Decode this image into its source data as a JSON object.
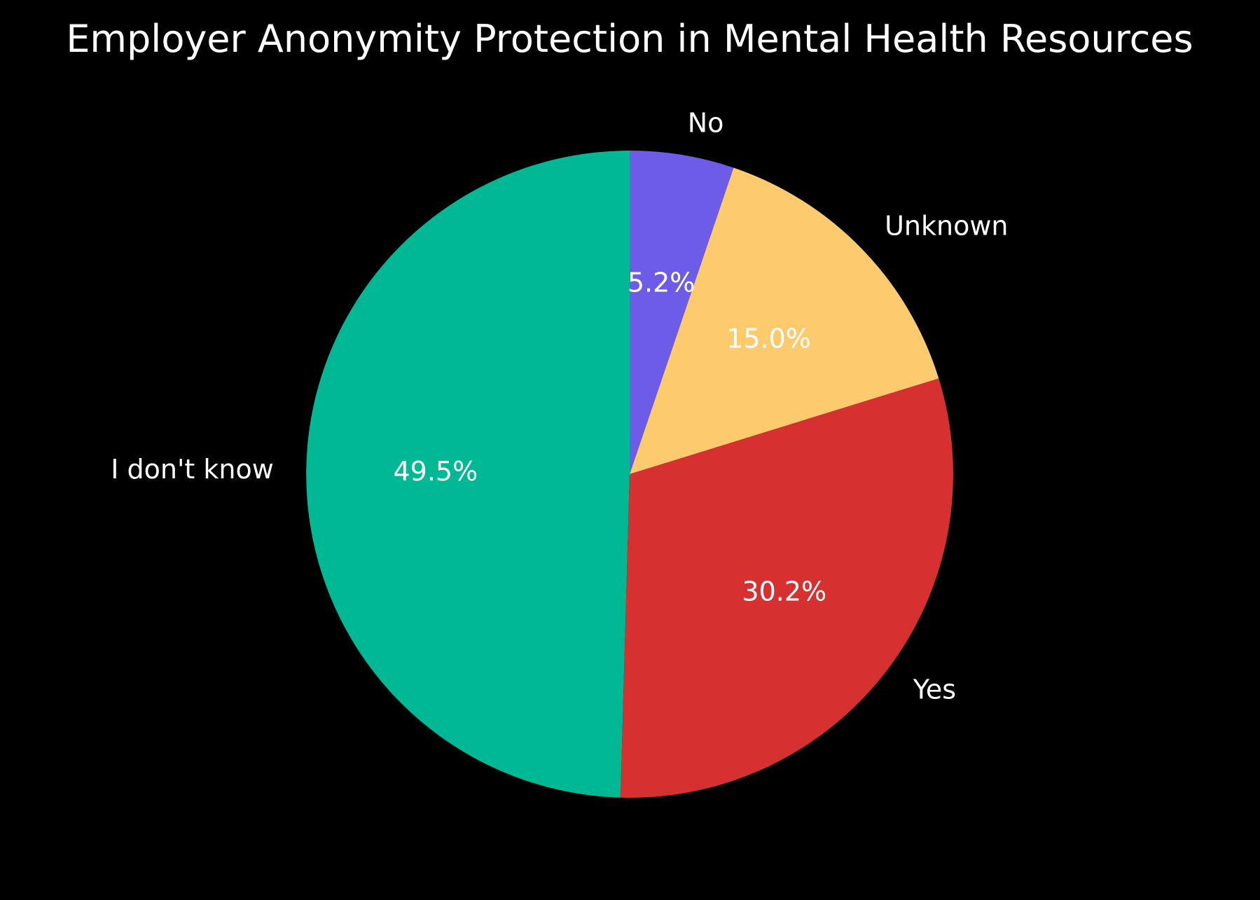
{
  "chart_data": {
    "type": "pie",
    "title": "Employer Anonymity Protection in Mental Health Resources",
    "start_angle_deg": 90,
    "direction": "clockwise",
    "slices": [
      {
        "label": "No",
        "value": 5.2,
        "pct_label": "5.2%",
        "color": "#6c5ce7"
      },
      {
        "label": "Unknown",
        "value": 15.0,
        "pct_label": "15.0%",
        "color": "#fdcb6e"
      },
      {
        "label": "Yes",
        "value": 30.2,
        "pct_label": "30.2%",
        "color": "#d63031"
      },
      {
        "label": "I don't know",
        "value": 49.5,
        "pct_label": "49.5%",
        "color": "#00b894"
      }
    ],
    "background": "#000000",
    "text_color": "#ffffff"
  }
}
